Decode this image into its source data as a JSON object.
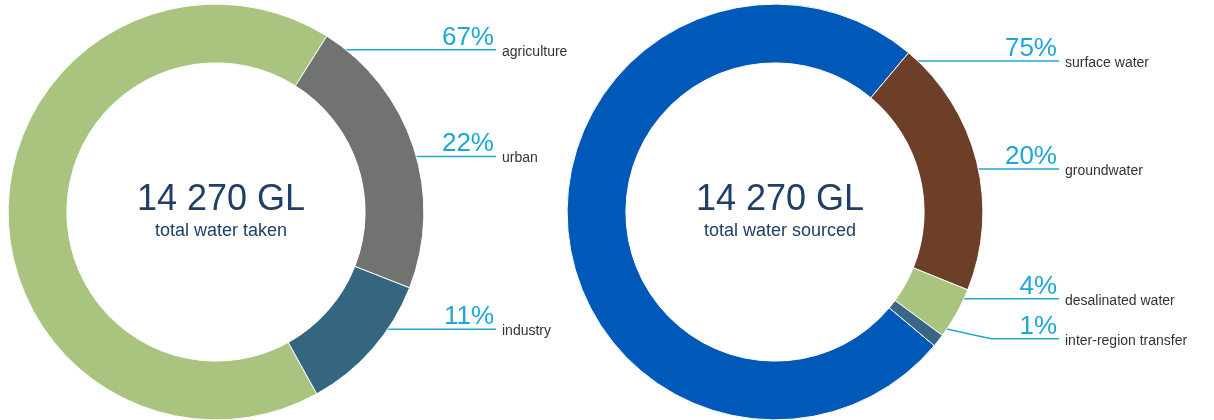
{
  "chart_data": [
    {
      "type": "donut",
      "title": "14 270 GL",
      "subtitle": "total water taken",
      "categories": [
        "agriculture",
        "urban",
        "industry"
      ],
      "values": [
        67,
        22,
        11
      ],
      "value_labels": [
        "67%",
        "22%",
        "11%"
      ],
      "colors": [
        "#a9c47f",
        "#717370",
        "#35667f"
      ]
    },
    {
      "type": "donut",
      "title": "14 270 GL",
      "subtitle": "total water sourced",
      "categories": [
        "surface water",
        "groundwater",
        "desalinated water",
        "inter-region transfer"
      ],
      "values": [
        75,
        20,
        4,
        1
      ],
      "value_labels": [
        "75%",
        "20%",
        "4%",
        "1%"
      ],
      "colors": [
        "#0058b8",
        "#6e3f28",
        "#a9c47f",
        "#3a6685"
      ]
    }
  ]
}
